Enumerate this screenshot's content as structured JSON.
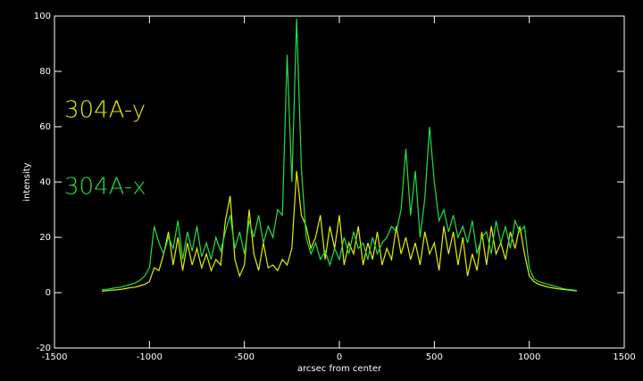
{
  "chart_data": {
    "type": "line",
    "xlabel": "arcsec from center",
    "ylabel": "intensity",
    "xlim": [
      -1500,
      1500
    ],
    "xticks": [
      -1500,
      -1000,
      -500,
      0,
      500,
      1000,
      1500
    ],
    "ylim": [
      -20,
      100
    ],
    "yticks": [
      -20,
      0,
      20,
      40,
      60,
      80,
      100
    ],
    "x": [
      -1250,
      -1225,
      -1200,
      -1175,
      -1150,
      -1125,
      -1100,
      -1075,
      -1050,
      -1025,
      -1000,
      -975,
      -950,
      -925,
      -900,
      -875,
      -850,
      -825,
      -800,
      -775,
      -750,
      -725,
      -700,
      -675,
      -650,
      -625,
      -600,
      -575,
      -550,
      -525,
      -500,
      -475,
      -450,
      -425,
      -400,
      -375,
      -350,
      -325,
      -300,
      -275,
      -250,
      -225,
      -200,
      -175,
      -150,
      -125,
      -100,
      -75,
      -50,
      -25,
      0,
      25,
      50,
      75,
      100,
      125,
      150,
      175,
      200,
      225,
      250,
      275,
      300,
      325,
      350,
      375,
      400,
      425,
      450,
      475,
      500,
      525,
      550,
      575,
      600,
      625,
      650,
      675,
      700,
      725,
      750,
      775,
      800,
      825,
      850,
      875,
      900,
      925,
      950,
      975,
      1000,
      1025,
      1050,
      1075,
      1100,
      1125,
      1150,
      1175,
      1200,
      1225,
      1250
    ],
    "series": [
      {
        "name": "304A-y",
        "color": "#e4f000",
        "values": [
          0.5,
          0.7,
          0.9,
          1,
          1.2,
          1.5,
          1.8,
          2,
          2.5,
          3,
          4,
          9,
          8,
          14,
          22,
          10,
          20,
          8,
          18,
          10,
          16,
          9,
          14,
          8,
          12,
          10,
          26,
          35,
          12,
          6,
          10,
          30,
          14,
          8,
          18,
          9,
          10,
          8,
          12,
          10,
          16,
          44,
          28,
          24,
          16,
          20,
          28,
          12,
          24,
          16,
          28,
          10,
          18,
          14,
          24,
          10,
          18,
          12,
          22,
          10,
          16,
          12,
          24,
          14,
          20,
          12,
          18,
          10,
          22,
          14,
          18,
          8,
          24,
          14,
          22,
          10,
          20,
          6,
          14,
          8,
          22,
          10,
          24,
          14,
          18,
          12,
          22,
          16,
          24,
          14,
          6,
          4,
          3,
          2.5,
          2,
          1.7,
          1.4,
          1.2,
          1,
          0.8,
          0.6
        ]
      },
      {
        "name": "304A-x",
        "color": "#22e046",
        "values": [
          1,
          1.2,
          1.5,
          1.8,
          2,
          2.5,
          3,
          3.5,
          4.5,
          6,
          9,
          24,
          18,
          14,
          20,
          16,
          26,
          12,
          22,
          15,
          24,
          13,
          18,
          12,
          20,
          15,
          22,
          28,
          16,
          22,
          14,
          26,
          20,
          28,
          18,
          24,
          20,
          30,
          28,
          86,
          40,
          99,
          45,
          20,
          14,
          18,
          12,
          15,
          10,
          16,
          12,
          20,
          14,
          22,
          16,
          18,
          12,
          20,
          14,
          18,
          20,
          24,
          22,
          30,
          52,
          28,
          44,
          20,
          34,
          60,
          40,
          26,
          30,
          22,
          28,
          20,
          24,
          18,
          26,
          14,
          20,
          22,
          14,
          26,
          18,
          24,
          16,
          26,
          22,
          24,
          9,
          5,
          4,
          3.5,
          3,
          2.5,
          2,
          1.5,
          1.2,
          1,
          0.8
        ]
      }
    ]
  }
}
